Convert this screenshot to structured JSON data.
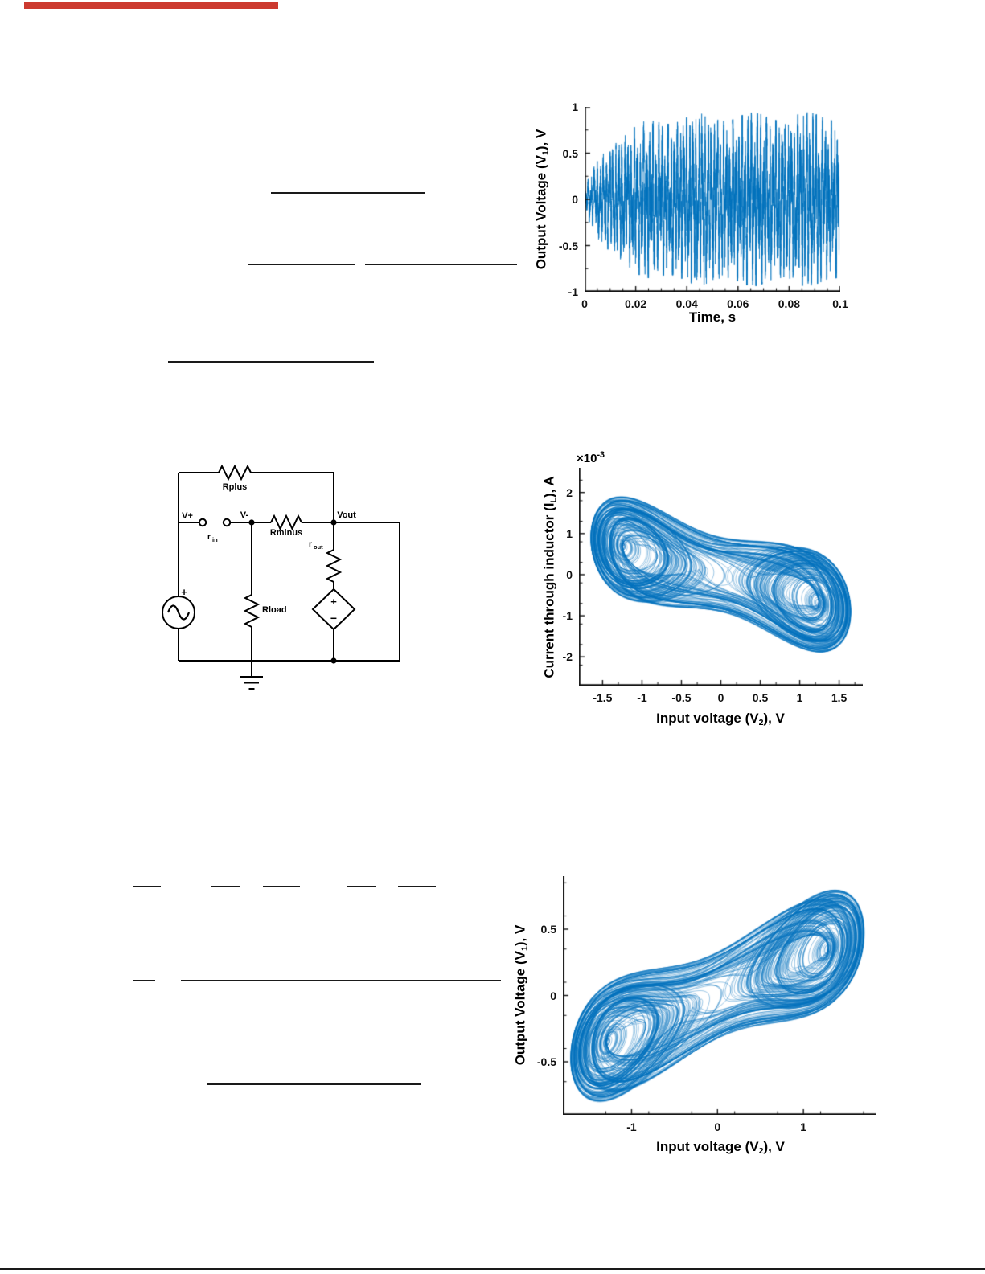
{
  "page": {
    "background": "#ffffff"
  },
  "decorations": {
    "red_bar_color": "#cc3a2f",
    "rule_color": "#1a1a1a",
    "footer_rule_color": "#1a1a1a"
  },
  "circuit": {
    "labels": {
      "rplus": "Rplus",
      "v_plus": "V+",
      "v_minus": "V-",
      "r_in_base": "r",
      "r_in_sub": "in",
      "rminus": "Rminus",
      "v_out": "Vout",
      "r_out_base": "r",
      "r_out_sub": "out",
      "rload": "Rload",
      "source_plus": "+",
      "dep_source_plus": "+",
      "dep_source_minus": "−"
    },
    "wire_color": "#000000"
  },
  "chart_data": [
    {
      "id": "output-voltage-time-series",
      "type": "line",
      "xlabel": "Time, s",
      "ylabel": {
        "pre": "Output Voltage (V",
        "sub": "1",
        "post": "), V"
      },
      "xlim": [
        0,
        0.1
      ],
      "ylim": [
        -1,
        1
      ],
      "xticks": [
        0,
        0.02,
        0.04,
        0.06,
        0.08,
        0.1
      ],
      "xtick_labels": [
        "0",
        "0.02",
        "0.04",
        "0.06",
        "0.08",
        "0.1"
      ],
      "yticks": [
        -1,
        -0.5,
        0,
        0.5,
        1
      ],
      "ytick_labels": [
        "-1",
        "-0.5",
        "0",
        "0.5",
        "1"
      ],
      "x_minor_step": 0.005,
      "y_minor_step": 0.25,
      "line_color": "#0072BD",
      "grid": false,
      "signal": {
        "description": "Dense chaotic oscillation of the output voltage: amplitude grows from about ±0.1 V at t=0 to a sustained chaotic band of about ±0.75 V (peaks near ±0.85 V) after roughly t=0.02–0.03 s and stays dense until t=0.1 s",
        "initial_amplitude_V": 0.1,
        "steady_amplitude_V": 0.78,
        "peak_amplitude_V": 0.85,
        "rise_time_s": 0.025
      }
    },
    {
      "id": "inductor-current-phase-portrait",
      "type": "phase-portrait",
      "xlabel": {
        "pre": "Input voltage (V",
        "sub": "2",
        "post": "), V"
      },
      "ylabel": {
        "pre": "Current through inductor (I",
        "sub": "L",
        "post": "), A"
      },
      "y_multiplier": {
        "base": "×10",
        "exp": "-3"
      },
      "xlim": [
        -1.8,
        1.8
      ],
      "ylim": [
        -2.7,
        2.6
      ],
      "xticks": [
        -1.5,
        -1,
        -0.5,
        0,
        0.5,
        1,
        1.5
      ],
      "xtick_labels": [
        "-1.5",
        "-1",
        "-0.5",
        "0",
        "0.5",
        "1",
        "1.5"
      ],
      "yticks": [
        -2,
        -1,
        0,
        1,
        2
      ],
      "ytick_labels": [
        "-2",
        "-1",
        "0",
        "1",
        "2"
      ],
      "x_minor_step": 0.25,
      "y_minor_step": 0.5,
      "line_color": "#0072BD",
      "grid": false,
      "attractor": {
        "description": "Chaotic two-lobe (bow-tie) attractor drawn with thousands of thin overlapping trajectory lines; spans about -1.75 to 1.75 V horizontally and -2.6 to 2.5 mA vertically, tilted with negative slope; left lobe sits high, right lobe sits low, each lobe containing lighter lens-shaped voids"
      }
    },
    {
      "id": "output-vs-input-voltage-phase-portrait",
      "type": "phase-portrait",
      "xlabel": {
        "pre": "Input voltage (V",
        "sub": "2",
        "post": "), V"
      },
      "ylabel": {
        "pre": "Output Voltage (V",
        "sub": "1",
        "post": "), V"
      },
      "xlim": [
        -1.8,
        1.85
      ],
      "ylim": [
        -0.9,
        0.9
      ],
      "xticks": [
        -1,
        0,
        1
      ],
      "xtick_labels": [
        "-1",
        "0",
        "1"
      ],
      "yticks": [
        -0.5,
        0,
        0.5
      ],
      "ytick_labels": [
        "-0.5",
        "0",
        "0.5"
      ],
      "x_minor_step": 0.5,
      "y_minor_step": 0.25,
      "line_color": "#0072BD",
      "grid": false,
      "attractor": {
        "description": "Dense chaotic attractor filling most of the axes; spans about -1.8 to 1.8 V horizontally and -0.85 to 0.85 V vertically with overall positive tilt; left and right lobes each contain lighter diagonal lens-shaped voids, connected by a dense central band"
      }
    }
  ]
}
